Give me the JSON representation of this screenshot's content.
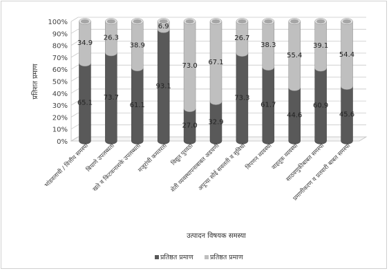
{
  "chart_data": {
    "type": "bar",
    "stacked": true,
    "percent_stacked": true,
    "three_d": true,
    "categories": [
      "भांडवलाची / वित्तीय समस्या",
      "बियाणे उपलब्धता",
      "खते व किटकनाशके उपलब्धता",
      "मजूरांची कमतरता",
      "विद्युत पुरवठा",
      "शेती व्यवस्थापनाबाबत अडचणी",
      "अपूऱ्या सोई सवलती व सुविधा",
      "विपणन व्यवस्था",
      "वाहतूक व्यवस्था",
      "साठवणुकीबाबत समस्या",
      "प्रमाणीकरण व प्रतवारी बाबत समस्या"
    ],
    "series": [
      {
        "name": "प्रतिष्ठत प्रमाण",
        "values": [
          65.1,
          73.7,
          61.1,
          93.1,
          27.0,
          32.9,
          73.3,
          61.7,
          44.6,
          60.9,
          45.6
        ]
      },
      {
        "name": "प्रतिष्ठत प्रमाण",
        "values": [
          34.9,
          26.3,
          38.9,
          6.9,
          73.0,
          67.1,
          26.7,
          38.3,
          55.4,
          39.1,
          54.4
        ]
      }
    ],
    "data_labels": {
      "bottom": [
        "65.1",
        "73.7",
        "61.1",
        "93.1",
        "27.0",
        "32.9",
        "73.3",
        "61.7",
        "44.6",
        "60.9",
        "45.6"
      ],
      "top": [
        "34.9",
        "26.3",
        "38.9",
        "6.9",
        "73.0",
        "67.1",
        "26.7",
        "38.3",
        "55.4",
        "39.1",
        "54.4"
      ]
    },
    "y_ticks": [
      "0%",
      "10%",
      "20%",
      "30%",
      "40%",
      "50%",
      "60%",
      "70%",
      "80%",
      "90%",
      "100%"
    ],
    "ylim": [
      0,
      100
    ],
    "xlabel": "उत्पादन विषयक समस्या",
    "ylabel": "प्रतिशत प्रमाण",
    "grid": true,
    "legend_position": "bottom",
    "colors": [
      "#595959",
      "#bfbfbf"
    ]
  }
}
